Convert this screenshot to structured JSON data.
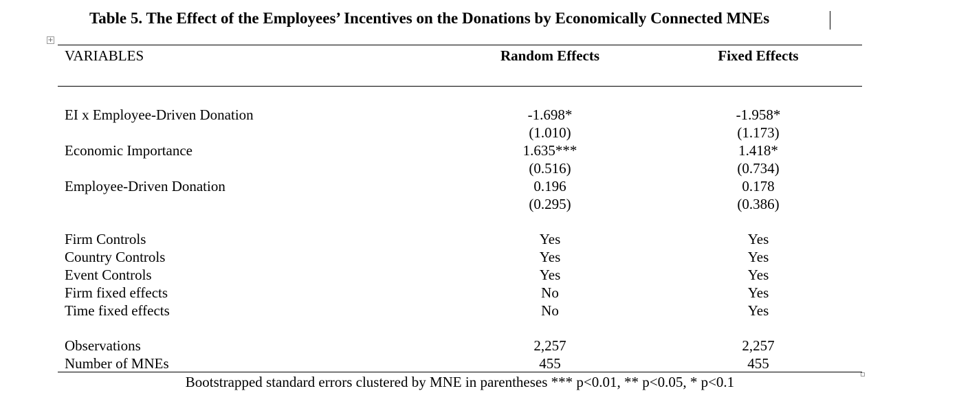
{
  "title": "Table 5. The Effect of the Employees’ Incentives on the Donations by Economically Connected MNEs",
  "table_handle_glyph": "+",
  "header": {
    "variables": "VARIABLES",
    "col1": "Random Effects",
    "col2": "Fixed Effects"
  },
  "rows": [
    {
      "label": "EI x Employee-Driven Donation",
      "col1": "-1.698*",
      "col2": "-1.958*"
    },
    {
      "label": "",
      "col1": "(1.010)",
      "col2": "(1.173)"
    },
    {
      "label": "Economic Importance",
      "col1": "1.635***",
      "col2": "1.418*"
    },
    {
      "label": "",
      "col1": "(0.516)",
      "col2": "(0.734)"
    },
    {
      "label": "Employee-Driven Donation",
      "col1": "0.196",
      "col2": "0.178"
    },
    {
      "label": "",
      "col1": "(0.295)",
      "col2": "(0.386)"
    },
    {
      "label": "Firm Controls",
      "col1": "Yes",
      "col2": "Yes"
    },
    {
      "label": "Country Controls",
      "col1": "Yes",
      "col2": "Yes"
    },
    {
      "label": "Event Controls",
      "col1": "Yes",
      "col2": "Yes"
    },
    {
      "label": "Firm fixed effects",
      "col1": "No",
      "col2": "Yes"
    },
    {
      "label": "Time fixed effects",
      "col1": "No",
      "col2": "Yes"
    },
    {
      "label": "Observations",
      "col1": "2,257",
      "col2": "2,257"
    },
    {
      "label": "Number of MNEs",
      "col1": "455",
      "col2": "455"
    }
  ],
  "note": "Bootstrapped standard errors clustered by MNE in parentheses *** p<0.01, ** p<0.05, * p<0.1"
}
